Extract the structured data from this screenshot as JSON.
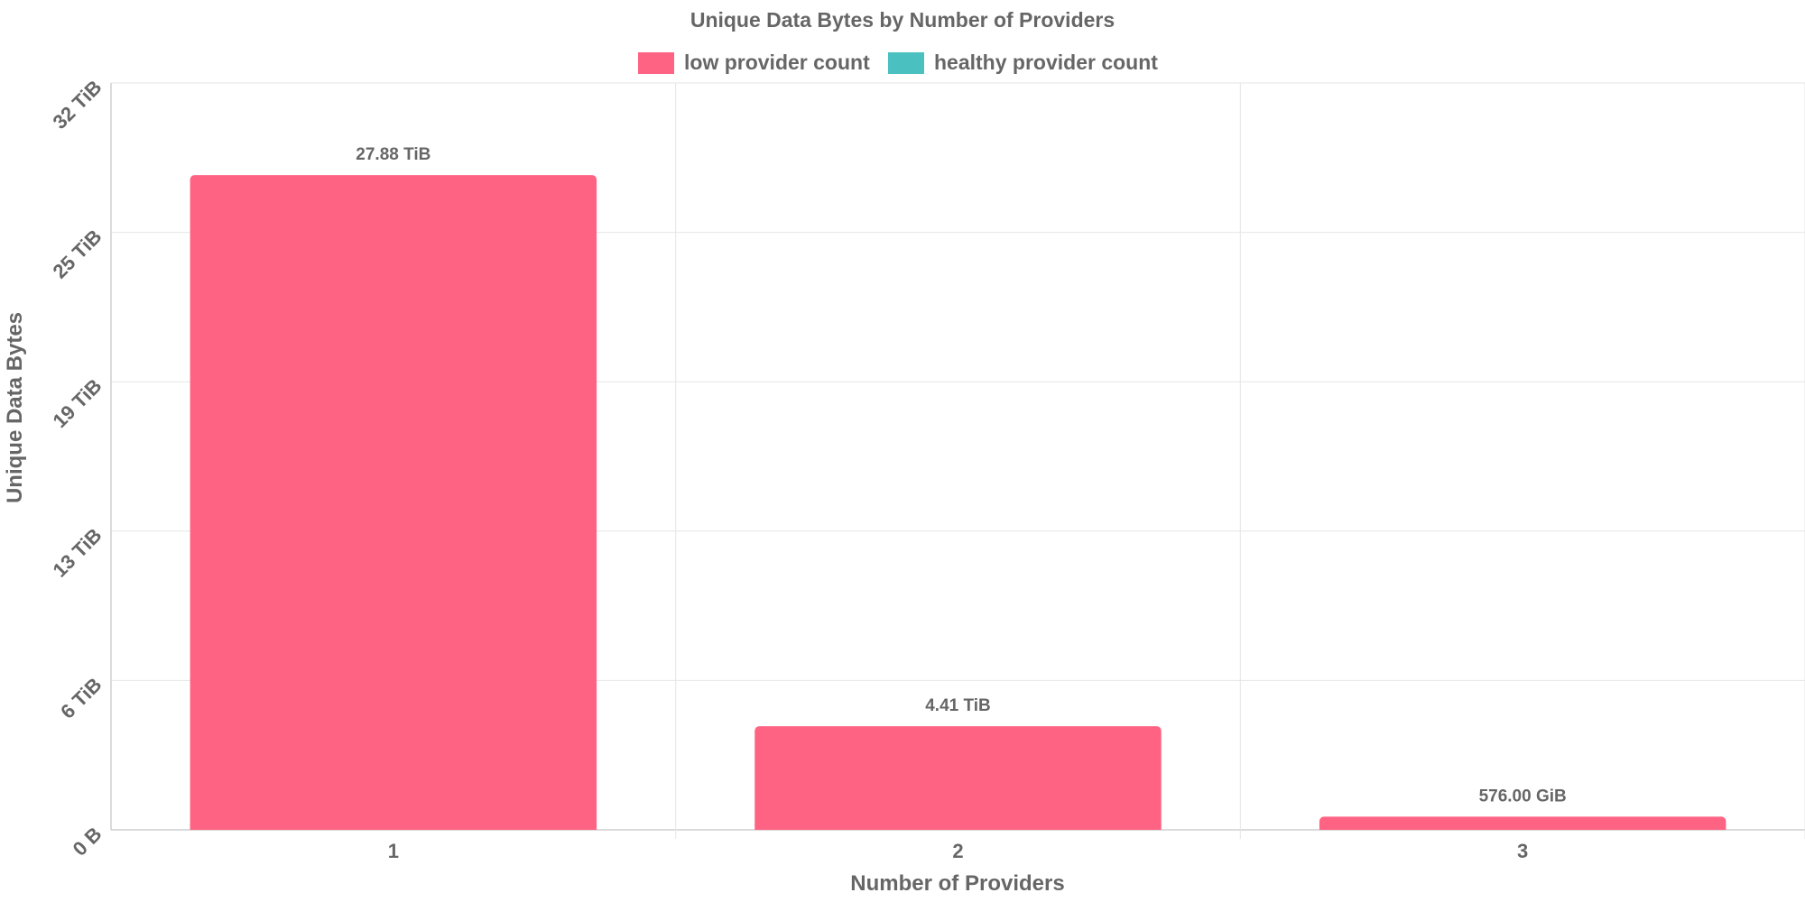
{
  "chart_data": {
    "type": "bar",
    "title": "Unique Data Bytes by Number of Providers",
    "xlabel": "Number of Providers",
    "ylabel": "Unique Data Bytes",
    "categories": [
      "1",
      "2",
      "3"
    ],
    "y_ticks": [
      "0 B",
      "6 TiB",
      "13 TiB",
      "19 TiB",
      "25 TiB",
      "32 TiB"
    ],
    "ylim": [
      0,
      31.8
    ],
    "legend_position": "top-center",
    "grid": true,
    "series": [
      {
        "name": "low provider count",
        "color": "#ff6384",
        "values": [
          27.88,
          4.41,
          0.5625
        ],
        "labels": [
          "27.88 TiB",
          "4.41 TiB",
          "576.00 GiB"
        ]
      },
      {
        "name": "healthy provider count",
        "color": "#4bc0c0",
        "values": [
          0,
          0,
          0
        ],
        "labels": []
      }
    ]
  }
}
